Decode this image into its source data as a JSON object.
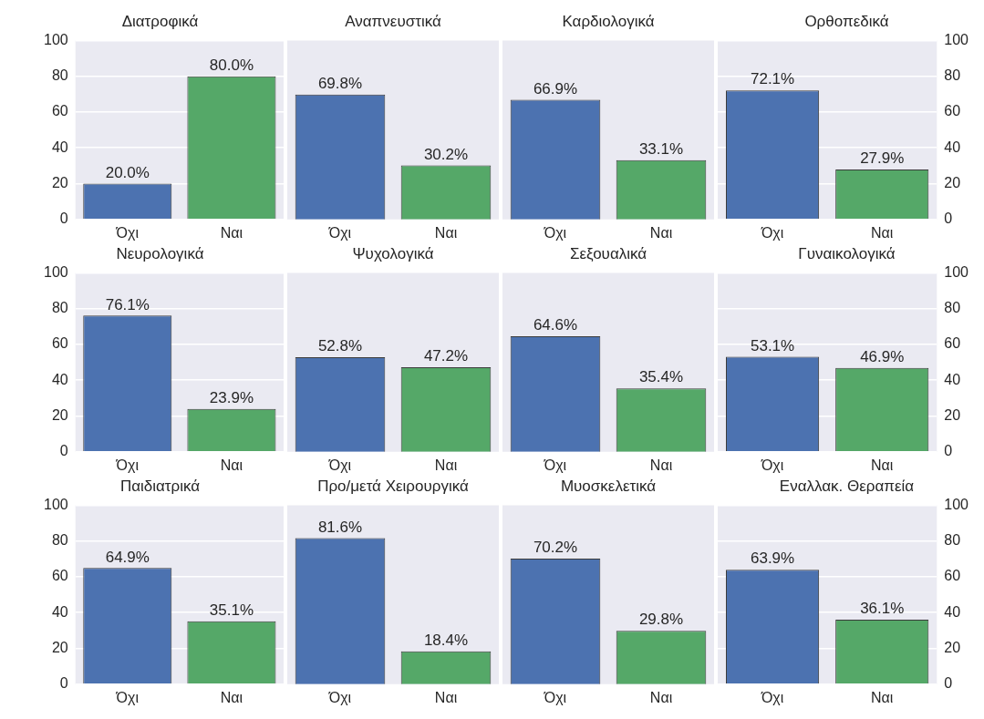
{
  "chart_data": [
    {
      "type": "bar",
      "title": "Διατροφικά",
      "categories": [
        "Όχι",
        "Ναι"
      ],
      "values": [
        20.0,
        80.0
      ],
      "value_labels": [
        "20.0%",
        "80.0%"
      ],
      "colors": [
        "#4c72b0",
        "#55a868"
      ],
      "ylim": [
        0,
        100
      ],
      "yticks": [
        0,
        20,
        40,
        60,
        80,
        100
      ],
      "grid": "y"
    },
    {
      "type": "bar",
      "title": "Αναπνευστικά",
      "categories": [
        "Όχι",
        "Ναι"
      ],
      "values": [
        69.8,
        30.2
      ],
      "value_labels": [
        "69.8%",
        "30.2%"
      ],
      "colors": [
        "#4c72b0",
        "#55a868"
      ],
      "ylim": [
        0,
        100
      ],
      "yticks": [
        0,
        20,
        40,
        60,
        80,
        100
      ],
      "grid": "y",
      "tick_labels": "x"
    },
    {
      "type": "bar",
      "title": "Καρδιολογικά",
      "categories": [
        "Όχι",
        "Ναι"
      ],
      "values": [
        66.9,
        33.1
      ],
      "value_labels": [
        "66.9%",
        "33.1%"
      ],
      "colors": [
        "#4c72b0",
        "#55a868"
      ],
      "ylim": [
        0,
        100
      ],
      "yticks": [
        0,
        20,
        40,
        60,
        80,
        100
      ],
      "grid": "y",
      "tick_labels": "x"
    },
    {
      "type": "bar",
      "title": "Ορθοπεδικά",
      "categories": [
        "Όχι",
        "Ναι"
      ],
      "values": [
        72.1,
        27.9
      ],
      "value_labels": [
        "72.1%",
        "27.9%"
      ],
      "colors": [
        "#4c72b0",
        "#55a868"
      ],
      "ylim": [
        0,
        100
      ],
      "yticks": [
        0,
        20,
        40,
        60,
        80,
        100
      ],
      "grid": "y"
    },
    {
      "type": "bar",
      "title": "Νευρολογικά",
      "categories": [
        "Όχι",
        "Ναι"
      ],
      "values": [
        76.1,
        23.9
      ],
      "value_labels": [
        "76.1%",
        "23.9%"
      ],
      "colors": [
        "#4c72b0",
        "#55a868"
      ],
      "ylim": [
        0,
        100
      ],
      "yticks": [
        0,
        20,
        40,
        60,
        80,
        100
      ],
      "grid": "y"
    },
    {
      "type": "bar",
      "title": "Ψυχολογικά",
      "categories": [
        "Όχι",
        "Ναι"
      ],
      "values": [
        52.8,
        47.2
      ],
      "value_labels": [
        "52.8%",
        "47.2%"
      ],
      "colors": [
        "#4c72b0",
        "#55a868"
      ],
      "ylim": [
        0,
        100
      ],
      "yticks": [
        0,
        20,
        40,
        60,
        80,
        100
      ],
      "grid": "y",
      "tick_labels": "x"
    },
    {
      "type": "bar",
      "title": "Σεξουαλικά",
      "categories": [
        "Όχι",
        "Ναι"
      ],
      "values": [
        64.6,
        35.4
      ],
      "value_labels": [
        "64.6%",
        "35.4%"
      ],
      "colors": [
        "#4c72b0",
        "#55a868"
      ],
      "ylim": [
        0,
        100
      ],
      "yticks": [
        0,
        20,
        40,
        60,
        80,
        100
      ],
      "grid": "y",
      "tick_labels": "x"
    },
    {
      "type": "bar",
      "title": "Γυναικολογικά",
      "categories": [
        "Όχι",
        "Ναι"
      ],
      "values": [
        53.1,
        46.9
      ],
      "value_labels": [
        "53.1%",
        "46.9%"
      ],
      "colors": [
        "#4c72b0",
        "#55a868"
      ],
      "ylim": [
        0,
        100
      ],
      "yticks": [
        0,
        20,
        40,
        60,
        80,
        100
      ],
      "grid": "y"
    },
    {
      "type": "bar",
      "title": "Παιδιατρικά",
      "categories": [
        "Όχι",
        "Ναι"
      ],
      "values": [
        64.9,
        35.1
      ],
      "value_labels": [
        "64.9%",
        "35.1%"
      ],
      "colors": [
        "#4c72b0",
        "#55a868"
      ],
      "ylim": [
        0,
        100
      ],
      "yticks": [
        0,
        20,
        40,
        60,
        80,
        100
      ],
      "grid": "y"
    },
    {
      "type": "bar",
      "title": "Προ/μετά Χειρουργικά",
      "categories": [
        "Όχι",
        "Ναι"
      ],
      "values": [
        81.6,
        18.4
      ],
      "value_labels": [
        "81.6%",
        "18.4%"
      ],
      "colors": [
        "#4c72b0",
        "#55a868"
      ],
      "ylim": [
        0,
        100
      ],
      "yticks": [
        0,
        20,
        40,
        60,
        80,
        100
      ],
      "grid": "y",
      "tick_labels": "x"
    },
    {
      "type": "bar",
      "title": "Μυοσκελετικά",
      "categories": [
        "Όχι",
        "Ναι"
      ],
      "values": [
        70.2,
        29.8
      ],
      "value_labels": [
        "70.2%",
        "29.8%"
      ],
      "colors": [
        "#4c72b0",
        "#55a868"
      ],
      "ylim": [
        0,
        100
      ],
      "yticks": [
        0,
        20,
        40,
        60,
        80,
        100
      ],
      "grid": "y",
      "tick_labels": "x"
    },
    {
      "type": "bar",
      "title": "Εναλλακ. Θεραπεία",
      "categories": [
        "Όχι",
        "Ναι"
      ],
      "values": [
        63.9,
        36.1
      ],
      "value_labels": [
        "63.9%",
        "36.1%"
      ],
      "colors": [
        "#4c72b0",
        "#55a868"
      ],
      "ylim": [
        0,
        100
      ],
      "yticks": [
        0,
        20,
        40,
        60,
        80,
        100
      ],
      "grid": "y"
    }
  ]
}
